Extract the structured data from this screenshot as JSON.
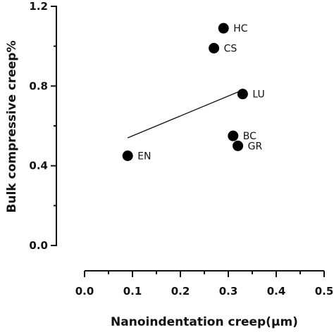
{
  "chart_data": {
    "type": "scatter",
    "xlabel": "Nanoindentation creep(μm)",
    "ylabel": "Bulk compressive creep%",
    "xlim": [
      0.0,
      0.5
    ],
    "ylim": [
      0.0,
      1.2
    ],
    "x_ticks": [
      "0.0",
      "0.1",
      "0.2",
      "0.3",
      "0.4",
      "0.5"
    ],
    "y_ticks": [
      "0.0",
      "0.4",
      "0.8",
      "1.2"
    ],
    "x_tick_values": [
      0.0,
      0.1,
      0.2,
      0.3,
      0.4,
      0.5
    ],
    "y_tick_values": [
      0.0,
      0.4,
      0.8,
      1.2
    ],
    "points": [
      {
        "label": "HC",
        "x": 0.29,
        "y": 1.09
      },
      {
        "label": "CS",
        "x": 0.27,
        "y": 0.99
      },
      {
        "label": "LU",
        "x": 0.33,
        "y": 0.76
      },
      {
        "label": "BC",
        "x": 0.31,
        "y": 0.55
      },
      {
        "label": "GR",
        "x": 0.32,
        "y": 0.5
      },
      {
        "label": "EN",
        "x": 0.09,
        "y": 0.45
      }
    ],
    "trendline": {
      "x": [
        0.09,
        0.33
      ],
      "y": [
        0.54,
        0.78
      ]
    },
    "grid": false,
    "legend": "none"
  }
}
